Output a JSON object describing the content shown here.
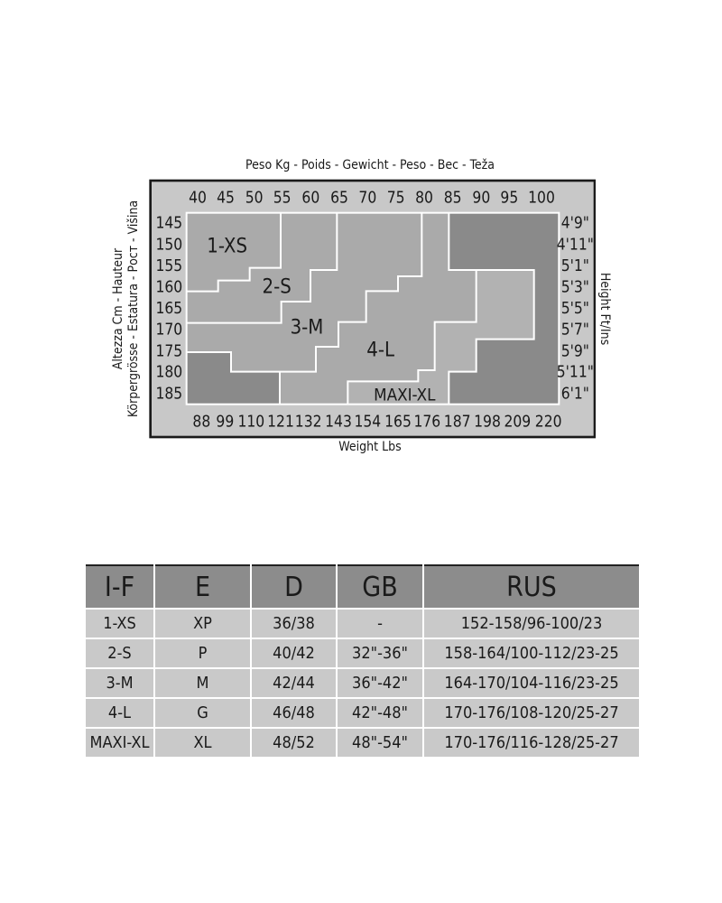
{
  "chart": {
    "title_top": "Peso Kg - Poids - Gewicht - Peso - Вес - Teža",
    "title_bottom": "Weight Lbs",
    "left_label_1": "Altezza Cm - Hauteur",
    "left_label_2": "Körpergrösse - Estatura - Рост - Višina",
    "right_label": "Height Ft/Ins",
    "kg": [
      "40",
      "45",
      "50",
      "55",
      "60",
      "65",
      "70",
      "75",
      "80",
      "85",
      "90",
      "95",
      "100"
    ],
    "lbs": [
      "88",
      "99",
      "110",
      "121",
      "132",
      "143",
      "154",
      "165",
      "176",
      "187",
      "198",
      "209",
      "220"
    ],
    "cm": [
      "145",
      "150",
      "155",
      "160",
      "165",
      "170",
      "175",
      "180",
      "185"
    ],
    "ft": [
      "4'9\"",
      "4'11\"",
      "5'1\"",
      "5'3\"",
      "5'5\"",
      "5'7\"",
      "5'9\"",
      "5'11\"",
      "6'1\""
    ],
    "sizes": [
      "1-XS",
      "2-S",
      "3-M",
      "4-L",
      "MAXI-XL"
    ],
    "colors": {
      "box": "#c8c8c8",
      "region": "#aaaaaa",
      "xl": "#b2b2b2",
      "dark": "#8a8a8a",
      "line": "#ffffff"
    }
  },
  "table": {
    "headers": [
      "I-F",
      "E",
      "D",
      "GB",
      "RUS"
    ],
    "rows": [
      [
        "1-XS",
        "XP",
        "36/38",
        "-",
        "152-158/96-100/23"
      ],
      [
        "2-S",
        "P",
        "40/42",
        "32\"-36\"",
        "158-164/100-112/23-25"
      ],
      [
        "3-M",
        "M",
        "42/44",
        "36\"-42\"",
        "164-170/104-116/23-25"
      ],
      [
        "4-L",
        "G",
        "46/48",
        "42\"-48\"",
        "170-176/108-120/25-27"
      ],
      [
        "MAXI-XL",
        "XL",
        "48/52",
        "48\"-54\"",
        "170-176/116-128/25-27"
      ]
    ]
  }
}
